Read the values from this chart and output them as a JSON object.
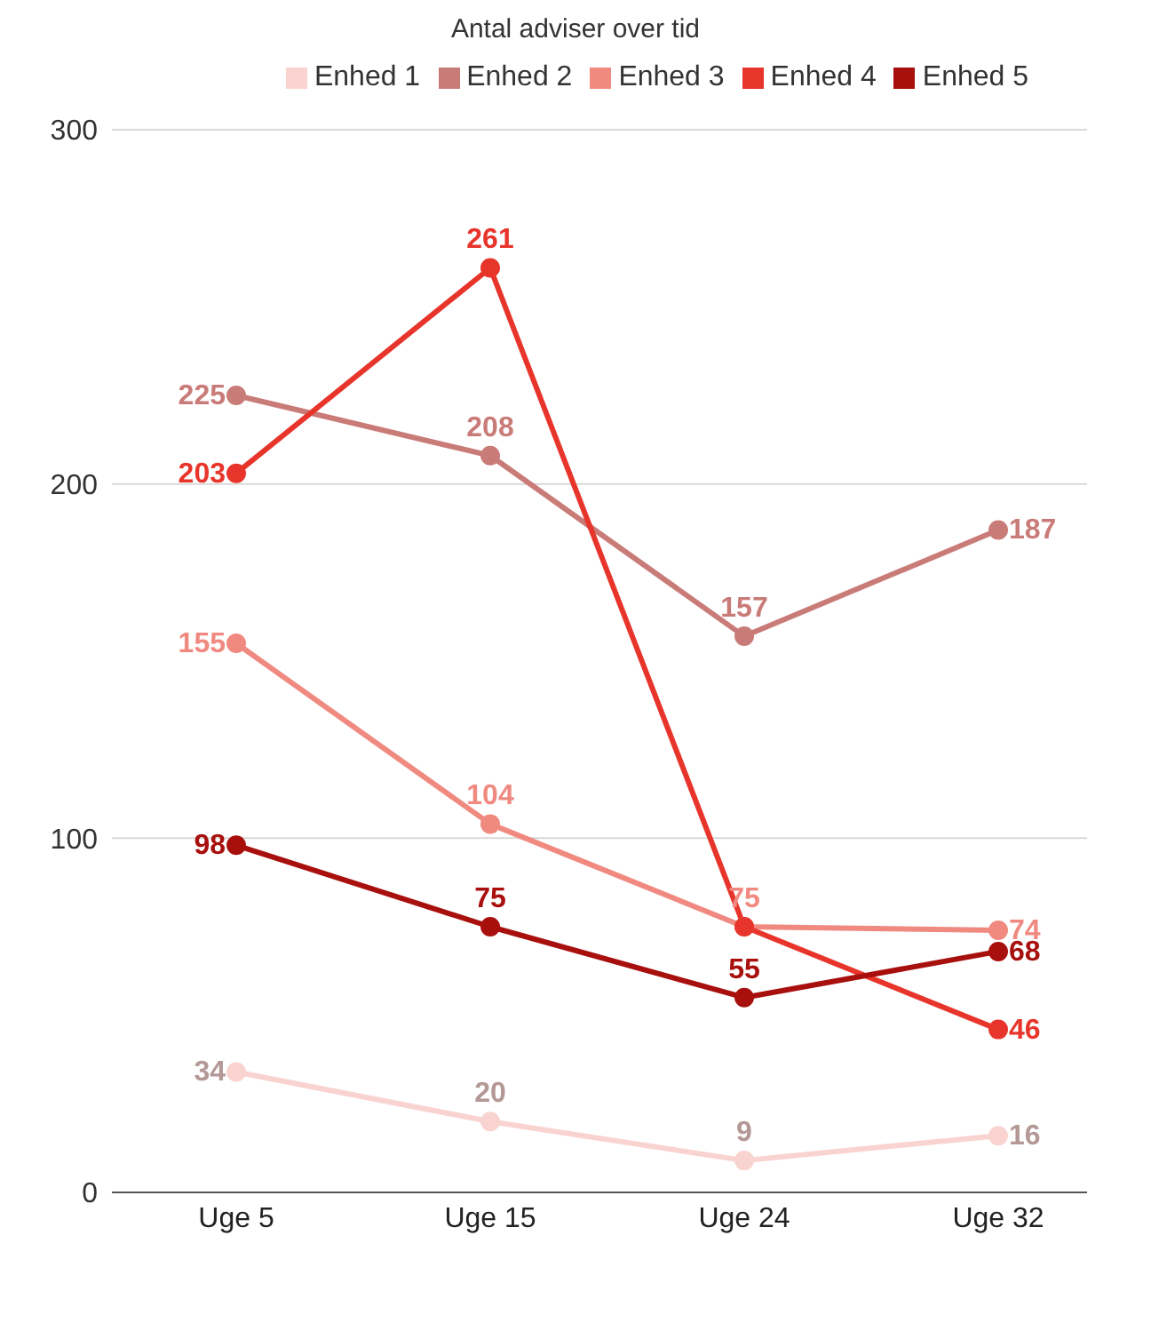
{
  "chart_data": {
    "type": "line",
    "title": "Antal adviser over tid",
    "categories": [
      "Uge 5",
      "Uge 15",
      "Uge 24",
      "Uge 32"
    ],
    "ylim": [
      0,
      300
    ],
    "yticks": [
      0,
      100,
      200,
      300
    ],
    "grid": "y",
    "legend": "top",
    "marker": "circle",
    "line_style": "solid",
    "series": [
      {
        "name": "Enhed 1",
        "color": "#f9d3d0",
        "values": [
          34,
          20,
          9,
          16
        ],
        "value_labels": [
          "34",
          "20",
          "9",
          "16"
        ]
      },
      {
        "name": "Enhed 2",
        "color": "#c97b78",
        "values": [
          225,
          208,
          157,
          187
        ],
        "value_labels": [
          "225",
          "208",
          "157",
          "187"
        ]
      },
      {
        "name": "Enhed 3",
        "color": "#f08a80",
        "values": [
          155,
          104,
          75,
          74
        ],
        "value_labels": [
          "155",
          "104",
          "75",
          "74"
        ]
      },
      {
        "name": "Enhed 4",
        "color": "#e8352b",
        "values": [
          203,
          261,
          75,
          46
        ],
        "value_labels": [
          "203",
          "261",
          null,
          "46"
        ]
      },
      {
        "name": "Enhed 5",
        "color": "#a8100e",
        "values": [
          98,
          75,
          55,
          68
        ],
        "value_labels": [
          "98",
          "75",
          "55",
          "68"
        ]
      }
    ]
  }
}
